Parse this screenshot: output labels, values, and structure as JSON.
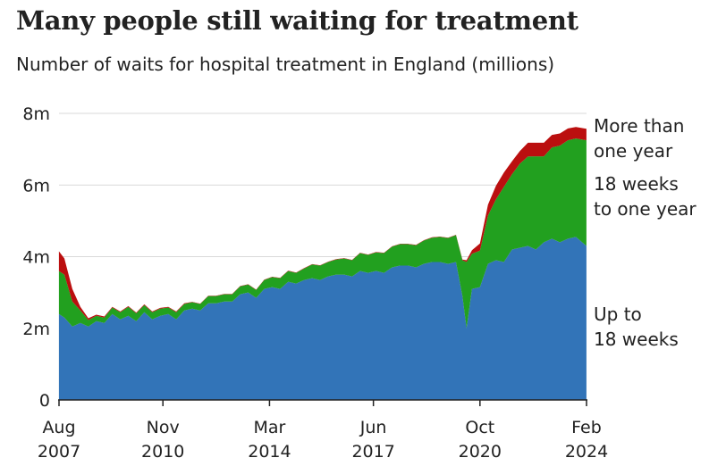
{
  "title": "Many people still waiting for treatment",
  "subtitle": "Number of waits for hospital treatment in England (millions)",
  "colors": {
    "up_to_18_weeks": "#3274b8",
    "weeks_18_to_one_year": "#22a01f",
    "more_than_one_year": "#bb0f0f",
    "gridline": "#d9d9d9",
    "axis": "#222222"
  },
  "chart_data": {
    "type": "area",
    "stacked": true,
    "title": "Many people still waiting for treatment",
    "subtitle": "Number of waits for hospital treatment in England (millions)",
    "xlabel": "",
    "ylabel": "",
    "ylim": [
      0,
      8
    ],
    "yticks": [
      {
        "value": 0,
        "label": "0"
      },
      {
        "value": 2,
        "label": "2m"
      },
      {
        "value": 4,
        "label": "4m"
      },
      {
        "value": 6,
        "label": "6m"
      },
      {
        "value": 8,
        "label": "8m"
      }
    ],
    "xlim": [
      2007.583,
      2024.083
    ],
    "xticks": [
      {
        "value": 2007.583,
        "label": [
          "Aug",
          "2007"
        ]
      },
      {
        "value": 2010.833,
        "label": [
          "Nov",
          "2010"
        ]
      },
      {
        "value": 2014.167,
        "label": [
          "Mar",
          "2014"
        ]
      },
      {
        "value": 2017.417,
        "label": [
          "Jun",
          "2017"
        ]
      },
      {
        "value": 2020.75,
        "label": [
          "Oct",
          "2020"
        ]
      },
      {
        "value": 2024.083,
        "label": [
          "Feb",
          "2024"
        ]
      }
    ],
    "x": [
      2007.58,
      2007.75,
      2008.0,
      2008.25,
      2008.5,
      2008.75,
      2009.0,
      2009.25,
      2009.5,
      2009.75,
      2010.0,
      2010.25,
      2010.5,
      2010.75,
      2011.0,
      2011.25,
      2011.5,
      2011.75,
      2012.0,
      2012.25,
      2012.5,
      2012.75,
      2013.0,
      2013.25,
      2013.5,
      2013.75,
      2014.0,
      2014.25,
      2014.5,
      2014.75,
      2015.0,
      2015.25,
      2015.5,
      2015.75,
      2016.0,
      2016.25,
      2016.5,
      2016.75,
      2017.0,
      2017.25,
      2017.5,
      2017.75,
      2018.0,
      2018.25,
      2018.5,
      2018.75,
      2019.0,
      2019.25,
      2019.5,
      2019.75,
      2020.0,
      2020.2,
      2020.33,
      2020.5,
      2020.75,
      2021.0,
      2021.25,
      2021.5,
      2021.75,
      2022.0,
      2022.25,
      2022.5,
      2022.75,
      2023.0,
      2023.25,
      2023.5,
      2023.75,
      2024.08
    ],
    "series": [
      {
        "name": "Up to 18 weeks",
        "label": [
          "Up to",
          "18 weeks"
        ],
        "values": [
          2.4,
          2.3,
          2.05,
          2.15,
          2.05,
          2.2,
          2.15,
          2.4,
          2.25,
          2.35,
          2.2,
          2.45,
          2.25,
          2.35,
          2.4,
          2.25,
          2.5,
          2.55,
          2.5,
          2.7,
          2.7,
          2.75,
          2.75,
          2.95,
          3.0,
          2.85,
          3.1,
          3.15,
          3.1,
          3.3,
          3.25,
          3.35,
          3.4,
          3.35,
          3.45,
          3.5,
          3.5,
          3.45,
          3.6,
          3.55,
          3.6,
          3.55,
          3.7,
          3.75,
          3.75,
          3.7,
          3.8,
          3.85,
          3.85,
          3.8,
          3.85,
          2.9,
          2.0,
          3.1,
          3.15,
          3.8,
          3.9,
          3.85,
          4.2,
          4.25,
          4.3,
          4.2,
          4.4,
          4.5,
          4.4,
          4.5,
          4.55,
          4.3
        ]
      },
      {
        "name": "18 weeks to one year",
        "label": [
          "18 weeks",
          "to one year"
        ],
        "values": [
          1.2,
          1.2,
          0.7,
          0.35,
          0.18,
          0.15,
          0.15,
          0.18,
          0.2,
          0.25,
          0.22,
          0.2,
          0.2,
          0.2,
          0.18,
          0.2,
          0.18,
          0.18,
          0.18,
          0.2,
          0.2,
          0.2,
          0.2,
          0.22,
          0.22,
          0.22,
          0.25,
          0.28,
          0.3,
          0.3,
          0.3,
          0.32,
          0.38,
          0.4,
          0.4,
          0.42,
          0.45,
          0.45,
          0.5,
          0.5,
          0.52,
          0.55,
          0.58,
          0.6,
          0.6,
          0.62,
          0.65,
          0.68,
          0.7,
          0.72,
          0.75,
          1.0,
          1.85,
          0.98,
          1.02,
          1.35,
          1.7,
          2.1,
          2.1,
          2.35,
          2.5,
          2.6,
          2.4,
          2.55,
          2.7,
          2.75,
          2.75,
          2.95
        ]
      },
      {
        "name": "More than one year",
        "label": [
          "More than",
          "one year"
        ],
        "values": [
          0.55,
          0.45,
          0.35,
          0.1,
          0.05,
          0.03,
          0.03,
          0.02,
          0.02,
          0.02,
          0.02,
          0.02,
          0.02,
          0.02,
          0.02,
          0.02,
          0.02,
          0.01,
          0.01,
          0.01,
          0.01,
          0.01,
          0.01,
          0.01,
          0.01,
          0.01,
          0.01,
          0.01,
          0.01,
          0.01,
          0.01,
          0.01,
          0.01,
          0.01,
          0.01,
          0.01,
          0.01,
          0.01,
          0.01,
          0.01,
          0.01,
          0.01,
          0.01,
          0.01,
          0.01,
          0.01,
          0.01,
          0.01,
          0.01,
          0.01,
          0.01,
          0.02,
          0.05,
          0.1,
          0.2,
          0.3,
          0.38,
          0.4,
          0.36,
          0.35,
          0.38,
          0.38,
          0.38,
          0.35,
          0.34,
          0.33,
          0.32,
          0.32
        ]
      }
    ]
  }
}
